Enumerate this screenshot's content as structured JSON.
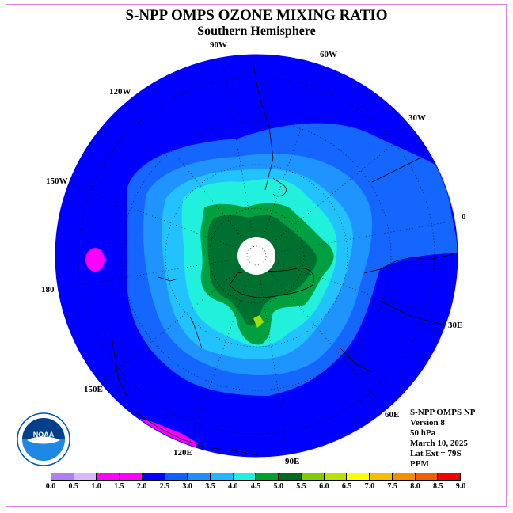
{
  "title": "S-NPP OMPS OZONE MIXING RATIO",
  "subtitle": "Southern Hemisphere",
  "longitude_labels": {
    "w90": "90W",
    "w60": "60W",
    "w30": "30W",
    "e0": "0",
    "w120": "120W",
    "w150": "150W",
    "l180": "180",
    "e150": "150E",
    "e120": "120E",
    "e90": "90E",
    "e60": "60E",
    "e30": "30E"
  },
  "info": {
    "line1": "S-NPP OMPS NP",
    "line2": "Version 8",
    "line3": "50 hPa",
    "line4": "March 10, 2025",
    "line5": "Lat Ext = 79S",
    "line6": "PPM"
  },
  "logo_text": "NOAA",
  "colorbar": {
    "colors": [
      "#b080f0",
      "#d8b8f8",
      "#ff00ff",
      "#ff00ff",
      "#0000ff",
      "#1060ff",
      "#2090ff",
      "#20b8ff",
      "#20f0e0",
      "#00a030",
      "#006820",
      "#80c800",
      "#b8e000",
      "#ffff00",
      "#f0c000",
      "#f09000",
      "#f06000",
      "#f00000",
      "#9c4820",
      "#7a4a2a"
    ],
    "ticks": [
      "0.0",
      "0.5",
      "1.0",
      "1.5",
      "2.0",
      "2.5",
      "3.0",
      "3.5",
      "4.0",
      "4.5",
      "5.0",
      "5.5",
      "6.0",
      "6.5",
      "7.0",
      "7.5",
      "8.0",
      "8.5",
      "9.0"
    ]
  },
  "map_colors": {
    "level_2_0": "#0000ff",
    "level_2_5": "#1565ff",
    "level_3_0": "#1f94ff",
    "level_3_5": "#22c2ff",
    "level_4_0": "#20f0dc",
    "level_4_5": "#00a040",
    "level_5_0": "#007030",
    "level_5_5": "#a0e000",
    "level_1_5": "#ff00ff",
    "pole": "#ffffff"
  }
}
